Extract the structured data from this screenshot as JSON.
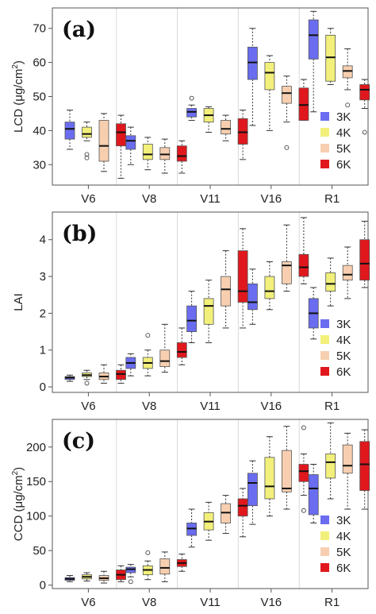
{
  "chart_data": [
    {
      "type": "box",
      "panel_label": "(a)",
      "ylabel": "LCD (μg/cm²)",
      "ylabel_main": "LCD (μg/cm",
      "ylabel_sup": "2",
      "ylabel_close": ")",
      "ylim": [
        24,
        76
      ],
      "yticks": [
        30,
        40,
        50,
        60,
        70
      ],
      "categories": [
        "V6",
        "V8",
        "V11",
        "V16",
        "R1"
      ],
      "legend_position": "bottom-right",
      "series": [
        {
          "name": "3K",
          "color": "#6a6df0",
          "boxes": [
            {
              "min": 34.5,
              "q1": 37.5,
              "median": 40.5,
              "q3": 42.5,
              "max": 46,
              "outliers": []
            },
            {
              "min": 30,
              "q1": 34.5,
              "median": 37,
              "q3": 38.5,
              "max": 41,
              "outliers": []
            },
            {
              "min": 43,
              "q1": 44,
              "median": 45.5,
              "q3": 46.5,
              "max": 47.5,
              "outliers": [
                49.5
              ]
            },
            {
              "min": 41.5,
              "q1": 55,
              "median": 60,
              "q3": 64.5,
              "max": 70,
              "outliers": []
            },
            {
              "min": 45.5,
              "q1": 61,
              "median": 68,
              "q3": 72.5,
              "max": 75,
              "outliers": []
            }
          ]
        },
        {
          "name": "4K",
          "color": "#f2f07a",
          "boxes": [
            {
              "min": 37,
              "q1": 38,
              "median": 39,
              "q3": 41,
              "max": 42.5,
              "outliers": [
                33,
                32
              ]
            },
            {
              "min": 28.5,
              "q1": 31.5,
              "median": 33,
              "q3": 36,
              "max": 38,
              "outliers": []
            },
            {
              "min": 39.5,
              "q1": 42.5,
              "median": 44.5,
              "q3": 46.5,
              "max": 47,
              "outliers": []
            },
            {
              "min": 40,
              "q1": 52,
              "median": 57,
              "q3": 60,
              "max": 62,
              "outliers": []
            },
            {
              "min": 53.5,
              "q1": 54.5,
              "median": 61.5,
              "q3": 68,
              "max": 70,
              "outliers": []
            }
          ]
        },
        {
          "name": "5K",
          "color": "#f7cfb0",
          "boxes": [
            {
              "min": 28,
              "q1": 31,
              "median": 35.5,
              "q3": 43,
              "max": 45,
              "outliers": []
            },
            {
              "min": 27.5,
              "q1": 31.5,
              "median": 33,
              "q3": 35,
              "max": 37.5,
              "outliers": []
            },
            {
              "min": 37,
              "q1": 39,
              "median": 40.5,
              "q3": 43,
              "max": 44.5,
              "outliers": []
            },
            {
              "min": 42.5,
              "q1": 48,
              "median": 51,
              "q3": 53,
              "max": 56,
              "outliers": [
                35
              ]
            },
            {
              "min": 52,
              "q1": 55.5,
              "median": 57.5,
              "q3": 59,
              "max": 64,
              "outliers": [
                47.5
              ]
            }
          ]
        },
        {
          "name": "6K",
          "color": "#e0181d",
          "boxes": [
            {
              "min": 26,
              "q1": 35.5,
              "median": 39.5,
              "q3": 42,
              "max": 44.5,
              "outliers": []
            },
            {
              "min": 27.5,
              "q1": 31,
              "median": 32.5,
              "q3": 35.5,
              "max": 37,
              "outliers": []
            },
            {
              "min": 31.5,
              "q1": 36,
              "median": 39.5,
              "q3": 43.5,
              "max": 46,
              "outliers": []
            },
            {
              "min": 43,
              "q1": 43,
              "median": 47.5,
              "q3": 52.5,
              "max": 55,
              "outliers": []
            },
            {
              "min": 46.5,
              "q1": 49,
              "median": 52,
              "q3": 53.5,
              "max": 55,
              "outliers": [
                39.5
              ]
            }
          ]
        }
      ]
    },
    {
      "type": "box",
      "panel_label": "(b)",
      "ylabel": "LAI",
      "ylabel_main": "LAI",
      "ylabel_sup": "",
      "ylabel_close": "",
      "ylim": [
        -0.15,
        4.75
      ],
      "yticks": [
        0,
        1,
        2,
        3,
        4
      ],
      "categories": [
        "V6",
        "V8",
        "V11",
        "V16",
        "R1"
      ],
      "legend_position": "bottom-right",
      "series": [
        {
          "name": "3K",
          "color": "#6a6df0",
          "boxes": [
            {
              "min": 0.15,
              "q1": 0.2,
              "median": 0.25,
              "q3": 0.28,
              "max": 0.32,
              "outliers": []
            },
            {
              "min": 0.3,
              "q1": 0.5,
              "median": 0.65,
              "q3": 0.8,
              "max": 0.9,
              "outliers": []
            },
            {
              "min": 1.2,
              "q1": 1.5,
              "median": 1.8,
              "q3": 2.2,
              "max": 2.6,
              "outliers": []
            },
            {
              "min": 1.7,
              "q1": 2.1,
              "median": 2.3,
              "q3": 2.8,
              "max": 3.2,
              "outliers": []
            },
            {
              "min": 1.3,
              "q1": 1.6,
              "median": 2.0,
              "q3": 2.4,
              "max": 2.7,
              "outliers": []
            }
          ]
        },
        {
          "name": "4K",
          "color": "#f2f07a",
          "boxes": [
            {
              "min": 0.2,
              "q1": 0.28,
              "median": 0.32,
              "q3": 0.38,
              "max": 0.45,
              "outliers": [
                0.1
              ]
            },
            {
              "min": 0.3,
              "q1": 0.5,
              "median": 0.65,
              "q3": 0.8,
              "max": 1.0,
              "outliers": [
                1.4
              ]
            },
            {
              "min": 1.2,
              "q1": 1.7,
              "median": 2.2,
              "q3": 2.4,
              "max": 2.9,
              "outliers": []
            },
            {
              "min": 2.1,
              "q1": 2.4,
              "median": 2.6,
              "q3": 3.0,
              "max": 3.4,
              "outliers": []
            },
            {
              "min": 2.2,
              "q1": 2.6,
              "median": 2.8,
              "q3": 3.1,
              "max": 3.5,
              "outliers": []
            }
          ]
        },
        {
          "name": "5K",
          "color": "#f7cfb0",
          "boxes": [
            {
              "min": 0.1,
              "q1": 0.2,
              "median": 0.28,
              "q3": 0.38,
              "max": 0.6,
              "outliers": []
            },
            {
              "min": 0.4,
              "q1": 0.55,
              "median": 0.7,
              "q3": 1.0,
              "max": 1.7,
              "outliers": []
            },
            {
              "min": 1.6,
              "q1": 2.2,
              "median": 2.65,
              "q3": 3.0,
              "max": 3.7,
              "outliers": []
            },
            {
              "min": 2.6,
              "q1": 2.8,
              "median": 3.3,
              "q3": 3.4,
              "max": 4.4,
              "outliers": []
            },
            {
              "min": 2.4,
              "q1": 2.9,
              "median": 3.05,
              "q3": 3.3,
              "max": 3.8,
              "outliers": []
            }
          ]
        },
        {
          "name": "6K",
          "color": "#e0181d",
          "boxes": [
            {
              "min": 0.1,
              "q1": 0.2,
              "median": 0.35,
              "q3": 0.45,
              "max": 0.6,
              "outliers": []
            },
            {
              "min": 0.6,
              "q1": 0.8,
              "median": 0.95,
              "q3": 1.2,
              "max": 1.6,
              "outliers": []
            },
            {
              "min": 1.6,
              "q1": 2.3,
              "median": 2.6,
              "q3": 3.7,
              "max": 4.3,
              "outliers": []
            },
            {
              "min": 2.8,
              "q1": 3.0,
              "median": 3.25,
              "q3": 3.6,
              "max": 4.6,
              "outliers": []
            },
            {
              "min": 2.7,
              "q1": 2.9,
              "median": 3.35,
              "q3": 4.0,
              "max": 4.5,
              "outliers": []
            }
          ]
        }
      ]
    },
    {
      "type": "box",
      "panel_label": "(c)",
      "ylabel": "CCD (μg/cm²)",
      "ylabel_main": "CCD (μg/cm",
      "ylabel_sup": "2",
      "ylabel_close": ")",
      "ylim": [
        -5,
        240
      ],
      "yticks": [
        0,
        50,
        100,
        150,
        200
      ],
      "categories": [
        "V6",
        "V8",
        "V11",
        "V16",
        "R1"
      ],
      "legend_position": "bottom-right",
      "series": [
        {
          "name": "3K",
          "color": "#6a6df0",
          "boxes": [
            {
              "min": 5,
              "q1": 7,
              "median": 9,
              "q3": 11,
              "max": 14,
              "outliers": []
            },
            {
              "min": 12,
              "q1": 18,
              "median": 23,
              "q3": 26,
              "max": 30,
              "outliers": [
                5
              ]
            },
            {
              "min": 55,
              "q1": 72,
              "median": 82,
              "q3": 90,
              "max": 110,
              "outliers": []
            },
            {
              "min": 88,
              "q1": 115,
              "median": 148,
              "q3": 162,
              "max": 180,
              "outliers": []
            },
            {
              "min": 90,
              "q1": 102,
              "median": 140,
              "q3": 160,
              "max": 175,
              "outliers": []
            }
          ]
        },
        {
          "name": "4K",
          "color": "#f2f07a",
          "boxes": [
            {
              "min": 6,
              "q1": 9,
              "median": 12,
              "q3": 15,
              "max": 18,
              "outliers": []
            },
            {
              "min": 8,
              "q1": 15,
              "median": 22,
              "q3": 28,
              "max": 35,
              "outliers": [
                47
              ]
            },
            {
              "min": 65,
              "q1": 80,
              "median": 92,
              "q3": 105,
              "max": 120,
              "outliers": []
            },
            {
              "min": 100,
              "q1": 125,
              "median": 143,
              "q3": 185,
              "max": 215,
              "outliers": []
            },
            {
              "min": 125,
              "q1": 155,
              "median": 178,
              "q3": 190,
              "max": 235,
              "outliers": []
            }
          ]
        },
        {
          "name": "5K",
          "color": "#f7cfb0",
          "boxes": [
            {
              "min": 3,
              "q1": 7,
              "median": 10,
              "q3": 14,
              "max": 20,
              "outliers": []
            },
            {
              "min": 5,
              "q1": 16,
              "median": 25,
              "q3": 38,
              "max": 48,
              "outliers": []
            },
            {
              "min": 75,
              "q1": 90,
              "median": 105,
              "q3": 118,
              "max": 130,
              "outliers": []
            },
            {
              "min": 110,
              "q1": 135,
              "median": 140,
              "q3": 195,
              "max": 230,
              "outliers": []
            },
            {
              "min": 110,
              "q1": 162,
              "median": 173,
              "q3": 203,
              "max": 220,
              "outliers": []
            }
          ]
        },
        {
          "name": "6K",
          "color": "#e0181d",
          "boxes": [
            {
              "min": 5,
              "q1": 8,
              "median": 15,
              "q3": 22,
              "max": 28,
              "outliers": []
            },
            {
              "min": 20,
              "q1": 27,
              "median": 32,
              "q3": 37,
              "max": 45,
              "outliers": []
            },
            {
              "min": 70,
              "q1": 100,
              "median": 115,
              "q3": 125,
              "max": 140,
              "outliers": []
            },
            {
              "min": 130,
              "q1": 150,
              "median": 165,
              "q3": 175,
              "max": 190,
              "outliers": [
                228,
                108
              ]
            },
            {
              "min": 110,
              "q1": 137,
              "median": 175,
              "q3": 208,
              "max": 225,
              "outliers": []
            }
          ]
        }
      ]
    }
  ]
}
